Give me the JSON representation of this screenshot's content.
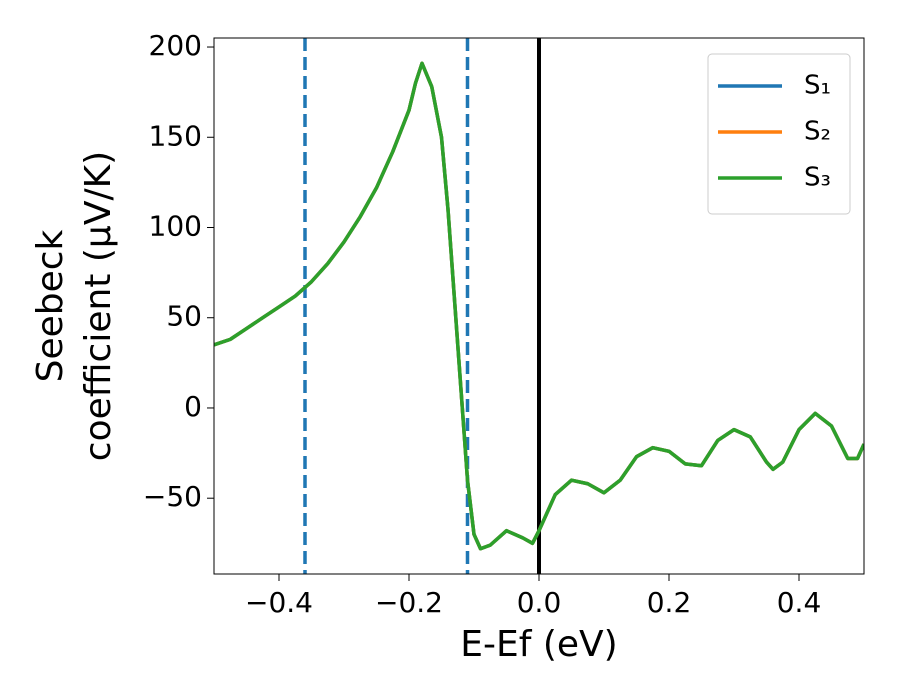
{
  "chart_data": {
    "type": "line",
    "xlabel": "E-Ef (eV)",
    "ylabel": [
      "Seebeck",
      "coefficient  (μV/K)"
    ],
    "x": [
      -0.5,
      -0.475,
      -0.45,
      -0.425,
      -0.4,
      -0.375,
      -0.35,
      -0.325,
      -0.3,
      -0.275,
      -0.25,
      -0.225,
      -0.2,
      -0.19,
      -0.18,
      -0.165,
      -0.15,
      -0.14,
      -0.13,
      -0.12,
      -0.11,
      -0.1,
      -0.09,
      -0.075,
      -0.05,
      -0.025,
      -0.01,
      0.0,
      0.025,
      0.05,
      0.075,
      0.1,
      0.125,
      0.15,
      0.175,
      0.2,
      0.225,
      0.25,
      0.275,
      0.3,
      0.325,
      0.35,
      0.36,
      0.375,
      0.4,
      0.425,
      0.45,
      0.475,
      0.49,
      0.5
    ],
    "series": [
      {
        "name": "S₁",
        "color": "#1f77b4",
        "values": [
          35,
          38,
          44,
          50,
          56,
          62,
          70,
          80,
          92,
          106,
          122,
          142,
          165,
          180,
          191,
          178,
          150,
          110,
          60,
          10,
          -40,
          -70,
          -78,
          -76,
          -68,
          -72,
          -75,
          -68,
          -48,
          -40,
          -42,
          -47,
          -40,
          -27,
          -22,
          -24,
          -31,
          -32,
          -18,
          -12,
          -16,
          -30,
          -34,
          -30,
          -12,
          -3,
          -10,
          -28,
          -28,
          -20
        ]
      },
      {
        "name": "S₂",
        "color": "#ff7f0e",
        "values": [
          35,
          38,
          44,
          50,
          56,
          62,
          70,
          80,
          92,
          106,
          122,
          142,
          165,
          180,
          191,
          178,
          150,
          110,
          60,
          10,
          -40,
          -70,
          -78,
          -76,
          -68,
          -72,
          -75,
          -68,
          -48,
          -40,
          -42,
          -47,
          -40,
          -27,
          -22,
          -24,
          -31,
          -32,
          -18,
          -12,
          -16,
          -30,
          -34,
          -30,
          -12,
          -3,
          -10,
          -28,
          -28,
          -20
        ]
      },
      {
        "name": "S₃",
        "color": "#2ca02c",
        "values": [
          35,
          38,
          44,
          50,
          56,
          62,
          70,
          80,
          92,
          106,
          122,
          142,
          165,
          180,
          191,
          178,
          150,
          110,
          60,
          10,
          -40,
          -70,
          -78,
          -76,
          -68,
          -72,
          -75,
          -68,
          -48,
          -40,
          -42,
          -47,
          -40,
          -27,
          -22,
          -24,
          -31,
          -32,
          -18,
          -12,
          -16,
          -30,
          -34,
          -30,
          -12,
          -3,
          -10,
          -28,
          -28,
          -20
        ]
      }
    ],
    "vlines": [
      {
        "x": -0.36,
        "color": "#1f77b4",
        "style": "dashed"
      },
      {
        "x": -0.11,
        "color": "#1f77b4",
        "style": "dashed"
      },
      {
        "x": 0,
        "color": "#000000",
        "style": "solid"
      }
    ],
    "xlim": [
      -0.5,
      0.5
    ],
    "ylim": [
      -92,
      205
    ],
    "xticks": [
      {
        "value": -0.4,
        "label": "−0.4"
      },
      {
        "value": -0.2,
        "label": "−0.2"
      },
      {
        "value": 0,
        "label": "0.0"
      },
      0.2,
      0.4
    ],
    "yticks": [
      {
        "value": -50,
        "label": "−50"
      },
      0,
      50,
      100,
      150,
      200
    ],
    "legend": "upper right"
  }
}
